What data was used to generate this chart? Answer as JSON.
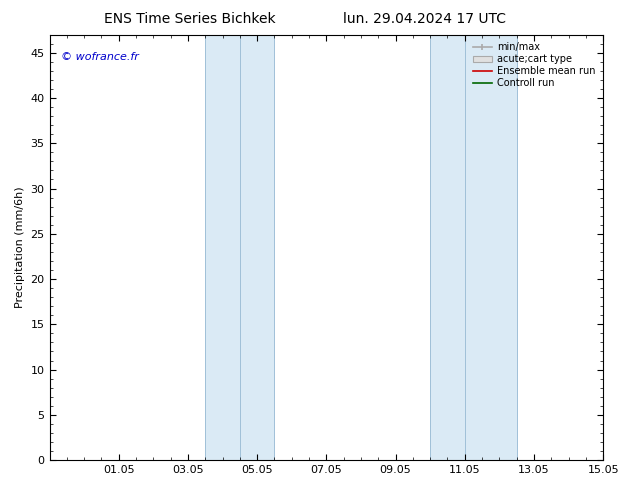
{
  "title_left": "ENS Time Series Bichkek",
  "title_right": "lun. 29.04.2024 17 UTC",
  "ylabel": "Precipitation (mm/6h)",
  "ylim": [
    0,
    47
  ],
  "yticks": [
    0,
    5,
    10,
    15,
    20,
    25,
    30,
    35,
    40,
    45
  ],
  "xtick_labels": [
    "01.05",
    "03.05",
    "05.05",
    "07.05",
    "09.05",
    "11.05",
    "13.05",
    "15.05"
  ],
  "xtick_positions": [
    2,
    4,
    6,
    8,
    10,
    12,
    14,
    16
  ],
  "xlim": [
    0,
    16
  ],
  "watermark": "© wofrance.fr",
  "band1": [
    4.5,
    6.5
  ],
  "band2": [
    11.0,
    13.5
  ],
  "band1_line": 5.5,
  "band2_line": 12.0,
  "shade_color": "#daeaf5",
  "shade_edge_color": "#a0c0d8",
  "background_color": "#ffffff",
  "watermark_color": "#0000cc",
  "grid_color": "#dddddd",
  "title_fontsize": 10,
  "axis_fontsize": 8,
  "tick_fontsize": 8
}
